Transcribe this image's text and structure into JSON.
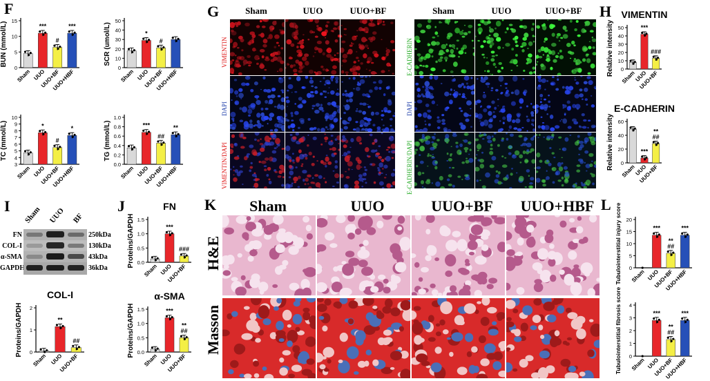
{
  "panel_letters": {
    "F": "F",
    "G": "G",
    "H": "H",
    "I": "I",
    "J": "J",
    "K": "K",
    "L": "L"
  },
  "groups4": [
    "Sham",
    "UUO",
    "UUO+BF",
    "UUO+HBF"
  ],
  "groups3": [
    "Sham",
    "UUO",
    "UUO+BF"
  ],
  "colors": {
    "sham": "#d9d9d9",
    "uuo": "#e8262a",
    "bf": "#f4ef45",
    "hbf": "#2650b8",
    "red_stain": "#d11",
    "green_stain": "#2a2",
    "blue_stain": "#1a3aa8"
  },
  "panel_G": {
    "left_cols": [
      "Sham",
      "UUO",
      "UUO+BF"
    ],
    "right_cols": [
      "Sham",
      "UUO",
      "UUO+BF"
    ],
    "left_rows": [
      "VIMENTIN",
      "DAPI",
      "VIMENTIN/DAPI"
    ],
    "right_rows": [
      "E-CADHERIN",
      "DAPI",
      "E-CADHERIN/DAPI"
    ]
  },
  "panel_I": {
    "lanes": [
      "Sham",
      "UUO",
      "BF"
    ],
    "proteins": [
      "FN",
      "COL-I",
      "α-SMA",
      "GAPDH"
    ],
    "sizes": [
      "250kDa",
      "130kDa",
      "43kDa",
      "36kDa"
    ]
  },
  "panel_K": {
    "cols": [
      "Sham",
      "UUO",
      "UUO+BF",
      "UUO+HBF"
    ],
    "rows": [
      "H&E",
      "Masson"
    ]
  },
  "chart_data": [
    {
      "id": "F-BUN",
      "type": "bar",
      "categories": [
        "Sham",
        "UUO",
        "UUO+BF",
        "UUO+HBF"
      ],
      "values": [
        4.5,
        11,
        6.5,
        11
      ],
      "ylabel": "BUN (mmol/L)",
      "ylim": [
        0,
        15
      ],
      "yticks": [
        0,
        5,
        10,
        15
      ],
      "annotations": [
        "",
        "***",
        "#",
        "***"
      ]
    },
    {
      "id": "F-SCR",
      "type": "bar",
      "categories": [
        "Sham",
        "UUO",
        "UUO+BF",
        "UUO+HBF"
      ],
      "values": [
        18,
        29,
        21,
        30
      ],
      "ylabel": "SCR (umol/L)",
      "ylim": [
        0,
        50
      ],
      "yticks": [
        0,
        10,
        20,
        30,
        40,
        50
      ],
      "annotations": [
        "",
        "*",
        "#",
        ""
      ]
    },
    {
      "id": "F-TC",
      "type": "bar",
      "categories": [
        "Sham",
        "UUO",
        "UUO+BF",
        "UUO+HBF"
      ],
      "values": [
        4.7,
        7.7,
        5.5,
        7.3
      ],
      "ylabel": "TC (mmol/L)",
      "ylim": [
        3,
        10
      ],
      "yticks": [
        3,
        4,
        5,
        6,
        7,
        8,
        9,
        10
      ],
      "annotations": [
        "",
        "*",
        "#",
        "*"
      ]
    },
    {
      "id": "F-TG",
      "type": "bar",
      "categories": [
        "Sham",
        "UUO",
        "UUO+BF",
        "UUO+HBF"
      ],
      "values": [
        0.35,
        0.68,
        0.45,
        0.63
      ],
      "ylabel": "TG (mmol/L)",
      "ylim": [
        0.0,
        1.0
      ],
      "yticks": [
        0.0,
        0.2,
        0.4,
        0.6,
        0.8,
        1.0
      ],
      "annotations": [
        "",
        "***",
        "##",
        "**"
      ]
    },
    {
      "id": "H-VIM",
      "type": "bar",
      "title": "VIMENTIN",
      "categories": [
        "Sham",
        "UUO",
        "UUO+BF"
      ],
      "values": [
        8,
        42,
        13
      ],
      "ylabel": "Relative intensity",
      "ylim": [
        0,
        50
      ],
      "yticks": [
        0,
        10,
        20,
        30,
        40,
        50
      ],
      "annotations": [
        "",
        "***",
        "###"
      ]
    },
    {
      "id": "H-ECAD",
      "type": "bar",
      "title": "E-CADHERIN",
      "categories": [
        "Sham",
        "UUO",
        "UUO+BF"
      ],
      "values": [
        49,
        7,
        28
      ],
      "ylabel": "Relative intensity",
      "ylim": [
        0,
        60
      ],
      "yticks": [
        0,
        20,
        40,
        60
      ],
      "annotations": [
        "",
        "***",
        "**\n##"
      ]
    },
    {
      "id": "I-COL",
      "type": "bar",
      "title": "COL-I",
      "categories": [
        "Sham",
        "UUO",
        "UUO+BF"
      ],
      "values": [
        0.05,
        1.15,
        0.2
      ],
      "ylabel": "Proteins/GAPDH",
      "ylim": [
        0,
        2
      ],
      "yticks": [
        0,
        1,
        2
      ],
      "annotations": [
        "",
        "**",
        "##"
      ]
    },
    {
      "id": "J-FN",
      "type": "bar",
      "title": "FN",
      "categories": [
        "Sham",
        "UUO",
        "UUO+BF"
      ],
      "values": [
        0.12,
        1.0,
        0.22
      ],
      "ylabel": "Proteins/GAPDH",
      "ylim": [
        0,
        1.5
      ],
      "yticks": [
        0.0,
        0.5,
        1.0,
        1.5
      ],
      "annotations": [
        "",
        "***",
        "###"
      ]
    },
    {
      "id": "J-SMA",
      "type": "bar",
      "title": "α-SMA",
      "categories": [
        "Sham",
        "UUO",
        "UUO+BF"
      ],
      "values": [
        0.1,
        1.2,
        0.5
      ],
      "ylabel": "Proteins/GAPDH",
      "ylim": [
        0,
        1.5
      ],
      "yticks": [
        0.0,
        0.5,
        1.0,
        1.5
      ],
      "annotations": [
        "",
        "***",
        "**\n##"
      ]
    },
    {
      "id": "L-INJ",
      "type": "bar",
      "categories": [
        "Sham",
        "UUO",
        "UUO+BF",
        "UUO+HBF"
      ],
      "values": [
        0,
        13.5,
        6,
        13.5
      ],
      "ylabel": "Tubulointerstitial injury score",
      "ylim": [
        0,
        20
      ],
      "yticks": [
        0,
        5,
        10,
        15,
        20
      ],
      "annotations": [
        "",
        "***",
        "**\n##",
        "***"
      ]
    },
    {
      "id": "L-FIB",
      "type": "bar",
      "categories": [
        "Sham",
        "UUO",
        "UUO+BF",
        "UUO+HBF"
      ],
      "values": [
        0,
        2.8,
        1.3,
        2.8
      ],
      "ylabel": "Tubulointerstitial fibrosis score",
      "ylim": [
        0,
        4
      ],
      "yticks": [
        0,
        1,
        2,
        3,
        4
      ],
      "annotations": [
        "",
        "***",
        "**\n##",
        "***"
      ]
    }
  ]
}
